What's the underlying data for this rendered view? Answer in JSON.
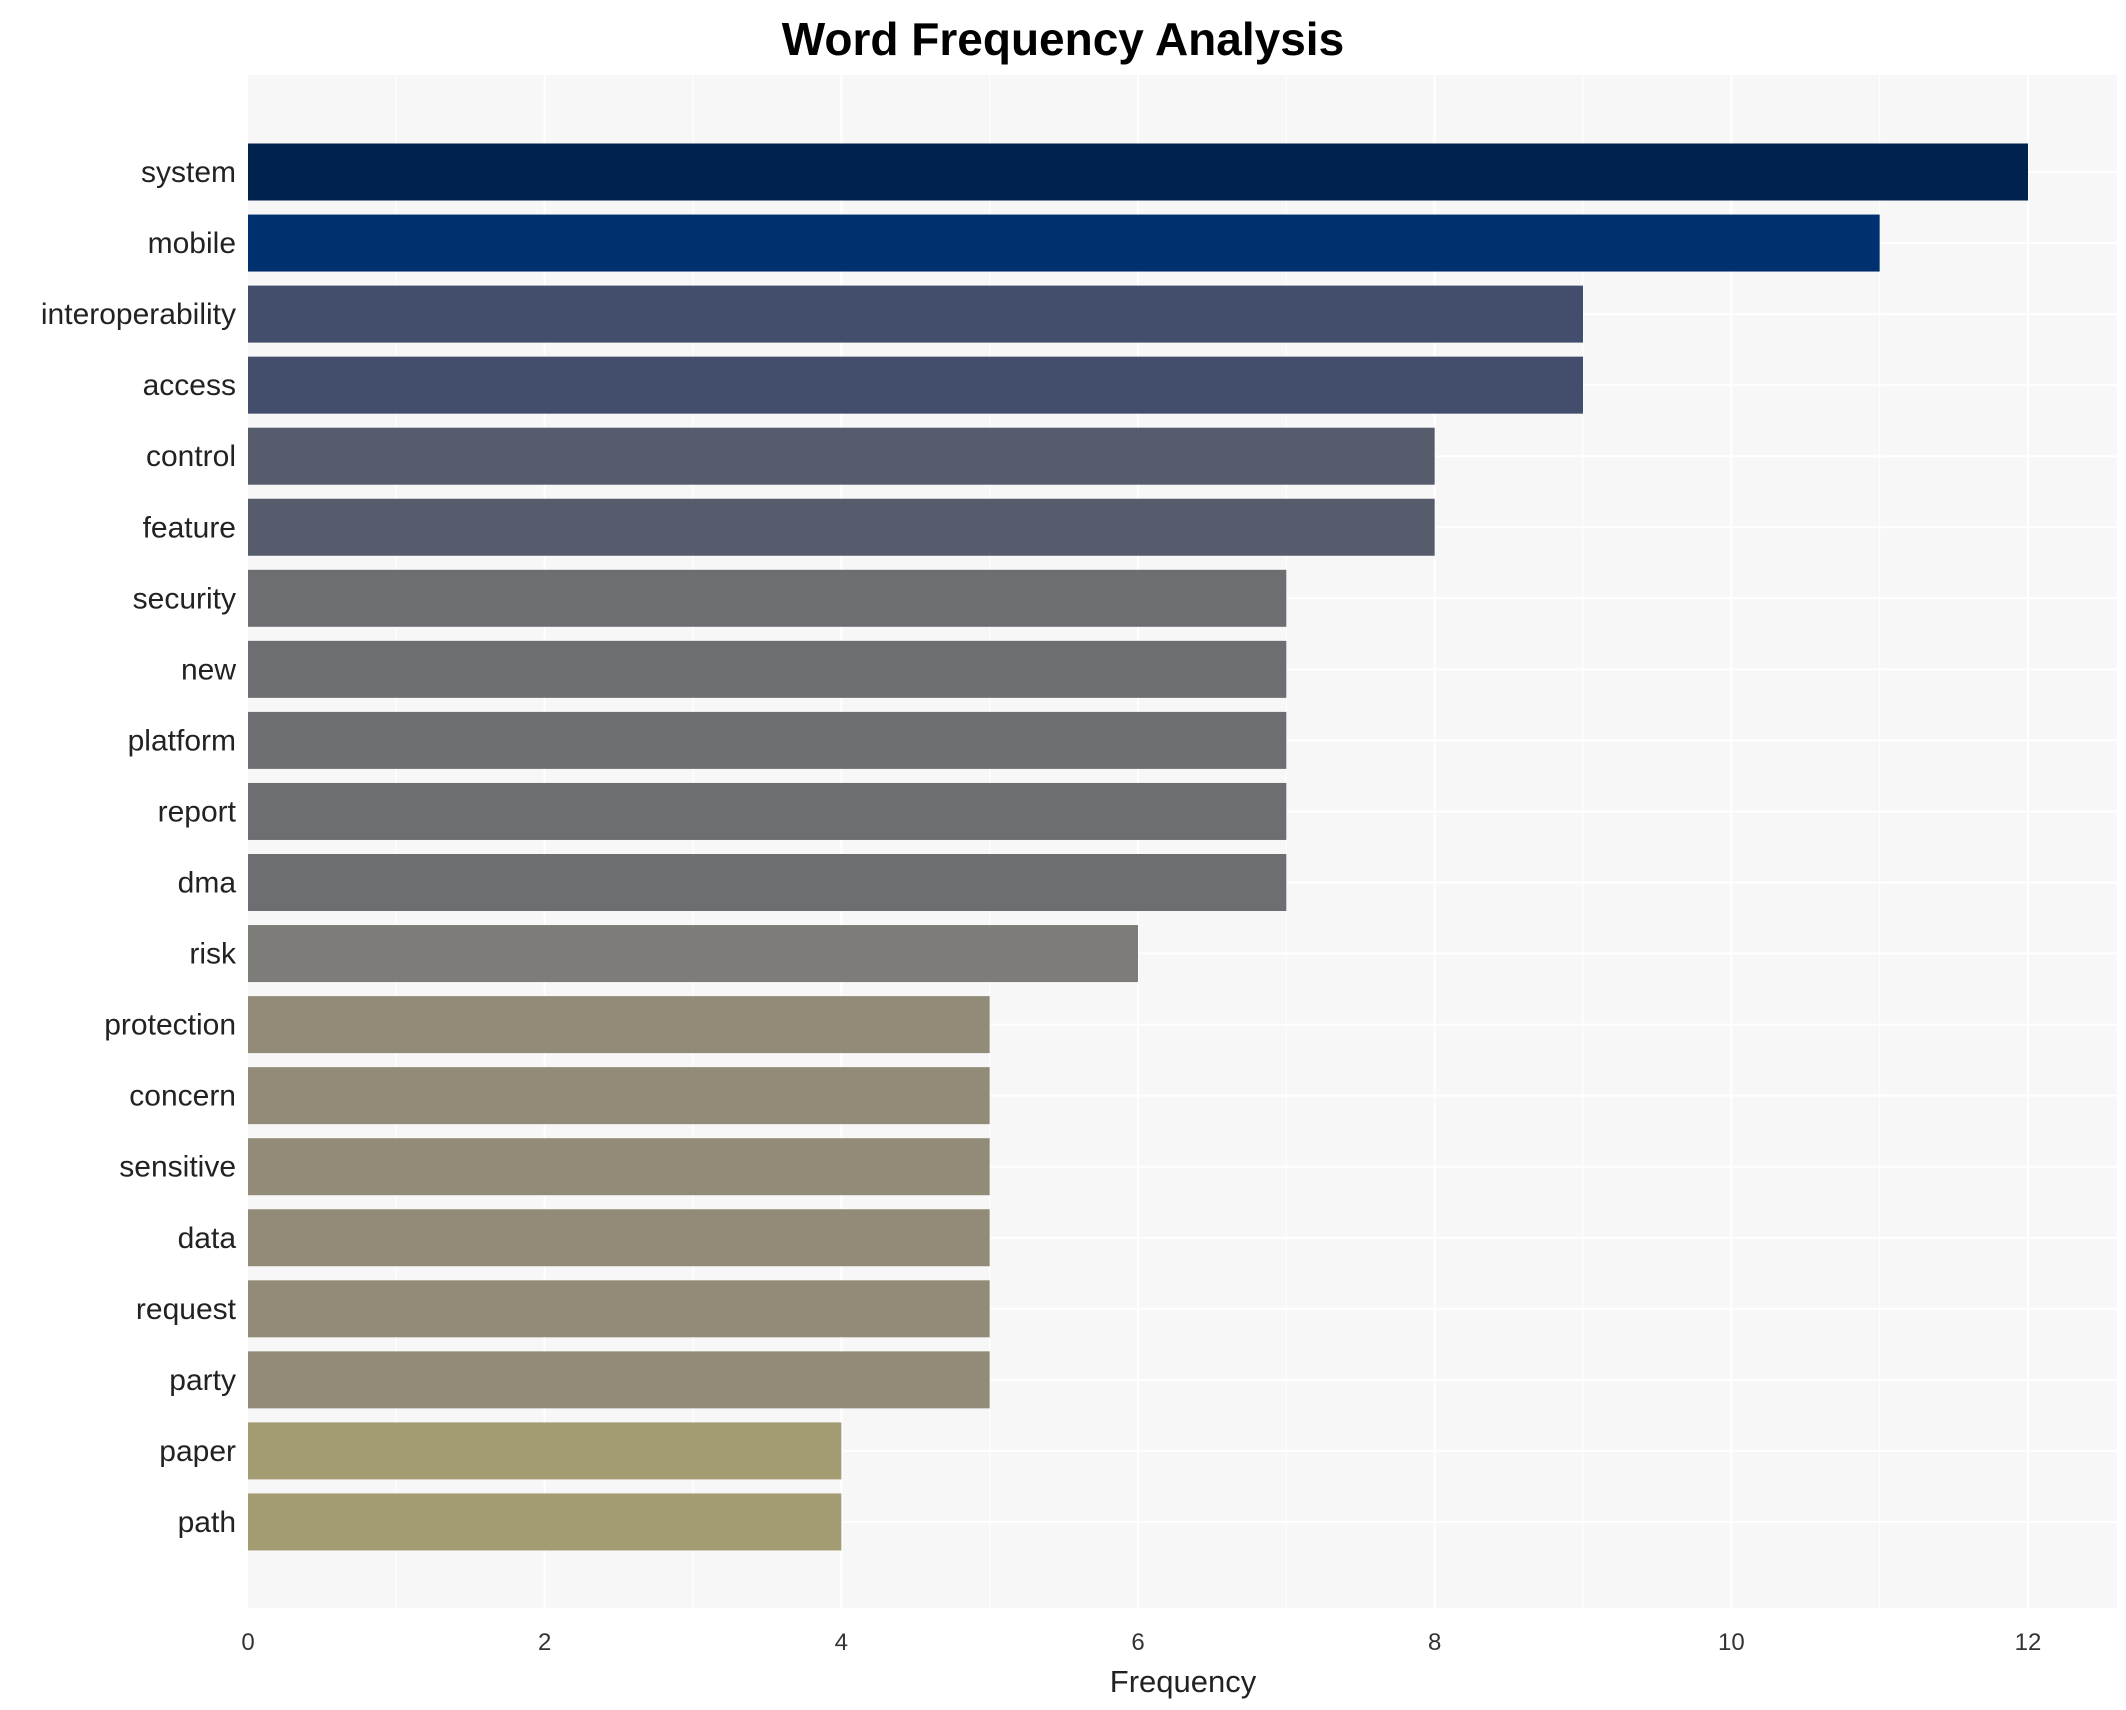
{
  "chart_data": {
    "type": "bar",
    "orientation": "horizontal",
    "title": "Word Frequency Analysis",
    "xlabel": "Frequency",
    "ylabel": "",
    "xlim": [
      0,
      12.5
    ],
    "xticks": [
      0,
      2,
      4,
      6,
      8,
      10,
      12
    ],
    "grid": true,
    "categories": [
      "system",
      "mobile",
      "interoperability",
      "access",
      "control",
      "feature",
      "security",
      "new",
      "platform",
      "report",
      "dma",
      "risk",
      "protection",
      "concern",
      "sensitive",
      "data",
      "request",
      "party",
      "paper",
      "path"
    ],
    "values": [
      12,
      11,
      9,
      9,
      8,
      8,
      7,
      7,
      7,
      7,
      7,
      6,
      5,
      5,
      5,
      5,
      5,
      5,
      4,
      4
    ],
    "colors": {
      "12": "#00224e",
      "11": "#01306f",
      "9": "#434e6c",
      "8": "#575c6d",
      "7": "#6c6e72",
      "6": "#7d7c78",
      "5": "#928b77",
      "4": "#a39b71"
    },
    "background": "#f7f7f7"
  }
}
